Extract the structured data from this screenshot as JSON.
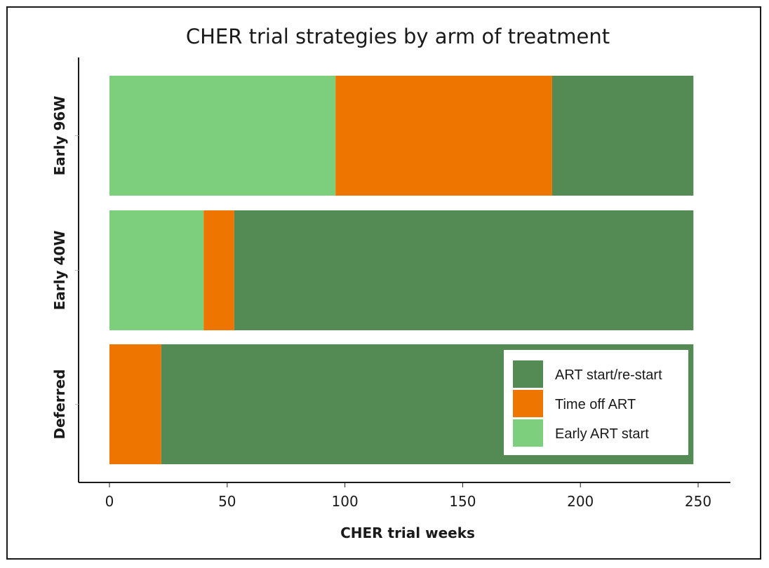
{
  "chart_data": {
    "type": "bar",
    "orientation": "horizontal",
    "stacked": true,
    "title": "CHER trial strategies by arm of treatment",
    "xlabel": "CHER trial weeks",
    "ylabel": "",
    "xlim": [
      0,
      250
    ],
    "x_ticks": [
      "0",
      "50",
      "100",
      "150",
      "200",
      "250"
    ],
    "categories": [
      "Deferred",
      "Early 40W",
      "Early 96W"
    ],
    "series": [
      {
        "name": "Early ART start",
        "color": "#7dcf7d",
        "values": [
          0,
          40,
          96
        ]
      },
      {
        "name": "Time off ART",
        "color": "#ee7600",
        "values": [
          22,
          13,
          92
        ]
      },
      {
        "name": "ART start/re-start",
        "color": "#548b54",
        "values": [
          226,
          195,
          60
        ]
      }
    ],
    "legend": {
      "position": "bottom-right",
      "order": [
        "ART start/re-start",
        "Time off ART",
        "Early ART start"
      ]
    },
    "grid": false
  }
}
